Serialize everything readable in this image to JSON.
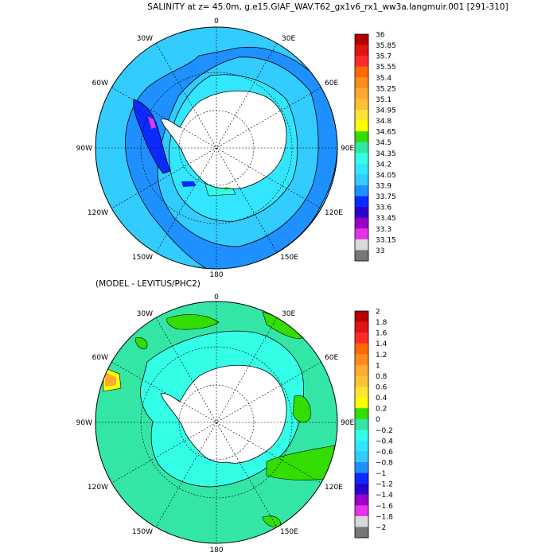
{
  "chart_data": [
    {
      "type": "heatmap",
      "title": "SALINITY at z=  45.0m, g.e15.GIAF_WAV.T62_gx1v6_rx1_ww3a.langmuir.001 [291-310]",
      "projection": "south-polar-stereographic",
      "lon_labels": [
        "0",
        "30E",
        "60E",
        "90E",
        "120E",
        "150E",
        "180",
        "150W",
        "120W",
        "90W",
        "60W",
        "30W"
      ],
      "colorbar": {
        "labels": [
          "36",
          "35.85",
          "35.7",
          "35.55",
          "35.4",
          "35.25",
          "35.1",
          "34.95",
          "34.8",
          "34.65",
          "34.5",
          "34.35",
          "34.2",
          "34.05",
          "33.9",
          "33.75",
          "33.6",
          "33.45",
          "33.3",
          "33.15",
          "33"
        ],
        "colors": [
          "#b40000",
          "#e11414",
          "#ff2a2a",
          "#ff6a00",
          "#ff8c1a",
          "#ffaa33",
          "#ffc233",
          "#ffe533",
          "#ffff00",
          "#33dd00",
          "#33e6a6",
          "#33ffe6",
          "#33e6ff",
          "#33ccff",
          "#1e90ff",
          "#0a2aff",
          "#2a00cc",
          "#9900cc",
          "#e633e6",
          "#d9d9d9",
          "#777777"
        ]
      },
      "regions": {
        "ocean_base": "#33ccff",
        "inner_band": "#33e6ff",
        "outer_band": "#1e90ff",
        "low_patch": "#0a2aff",
        "patch_cyan": "#33ffe6",
        "patch_green": "#33dd00",
        "patch_magenta": "#e633e6"
      }
    },
    {
      "type": "heatmap",
      "title": "(MODEL - LEVITUS/PHC2)",
      "projection": "south-polar-stereographic",
      "lon_labels": [
        "0",
        "30E",
        "60E",
        "90E",
        "120E",
        "150E",
        "180",
        "150W",
        "120W",
        "90W",
        "60W",
        "30W"
      ],
      "colorbar": {
        "labels": [
          "2",
          "1.8",
          "1.6",
          "1.4",
          "1.2",
          "1",
          "0.8",
          "0.6",
          "0.4",
          "0.2",
          "0",
          "−0.2",
          "−0.4",
          "−0.6",
          "−0.8",
          "−1",
          "−1.2",
          "−1.4",
          "−1.6",
          "−1.8",
          "−2"
        ],
        "colors": [
          "#b40000",
          "#e11414",
          "#ff2a2a",
          "#ff6a00",
          "#ff8c1a",
          "#ffaa33",
          "#ffc233",
          "#ffe533",
          "#ffff00",
          "#33dd00",
          "#33e6a6",
          "#33ffe6",
          "#33e6ff",
          "#33ccff",
          "#1e90ff",
          "#0a2aff",
          "#2a00cc",
          "#9900cc",
          "#e633e6",
          "#d9d9d9",
          "#777777"
        ]
      },
      "regions": {
        "ocean_base": "#33e6a6",
        "inner_band": "#33ffe6",
        "patch_green": "#33dd00",
        "patch_yellow": "#ffff00",
        "patch_orange": "#ffaa33"
      }
    }
  ]
}
